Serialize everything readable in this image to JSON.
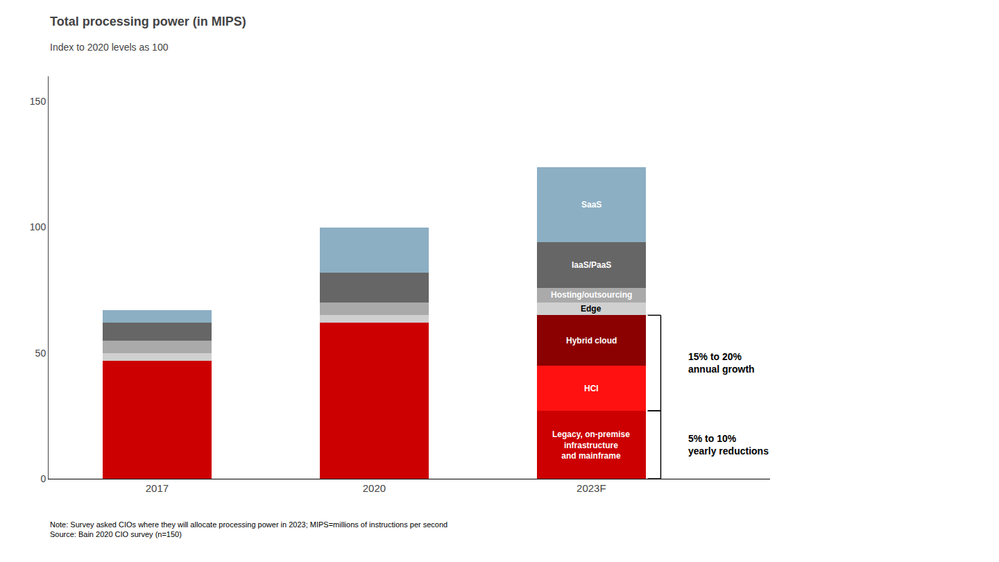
{
  "chart_data": {
    "type": "bar",
    "stacked": true,
    "title": "Total processing power (in MIPS)",
    "subtitle": "Index to 2020 levels as 100",
    "categories": [
      "2017",
      "2020",
      "2023F"
    ],
    "series": [
      {
        "name": "Legacy, on-premise\ninfrastructure\nand mainframe",
        "color": "#cc0000",
        "values": [
          47,
          62,
          27
        ]
      },
      {
        "name": "HCI",
        "color": "#ff1111",
        "values": [
          0,
          0,
          18
        ]
      },
      {
        "name": "Hybrid cloud",
        "color": "#8b0000",
        "values": [
          0,
          0,
          20
        ]
      },
      {
        "name": "Edge",
        "color": "#d0d0d0",
        "values": [
          3,
          3,
          5
        ]
      },
      {
        "name": "Hosting/outsourcing",
        "color": "#aaaaaa",
        "values": [
          5,
          5,
          6
        ]
      },
      {
        "name": "IaaS/PaaS",
        "color": "#666666",
        "values": [
          7,
          12,
          18
        ]
      },
      {
        "name": "SaaS",
        "color": "#8cafc4",
        "values": [
          5,
          18,
          30
        ]
      }
    ],
    "ylim": [
      0,
      160
    ],
    "yticks": [
      0,
      50,
      100,
      150
    ],
    "grid": false,
    "annotations": [
      {
        "text": "Legacy, on-premise\ninfrastructure\nand mainframe",
        "category": "2023F"
      },
      {
        "text": "HCI",
        "category": "2023F"
      },
      {
        "text": "Hybrid cloud",
        "category": "2023F"
      },
      {
        "text": "Edge",
        "category": "2023F"
      },
      {
        "text": "Hosting/outsourcing",
        "category": "2023F"
      },
      {
        "text": "IaaS/PaaS",
        "category": "2023F"
      },
      {
        "text": "SaaS",
        "category": "2023F"
      },
      {
        "text": "15% to 20%\nannual growth",
        "category": "2023F",
        "spans": [
          "HCI",
          "Hybrid cloud"
        ]
      },
      {
        "text": "5% to 10%\nyearly reductions",
        "category": "2023F",
        "spans": [
          "Legacy, on-premise\ninfrastructure\nand mainframe"
        ]
      }
    ],
    "note": "Note: Survey asked CIOs where they will allocate processing power in 2023; MIPS=millions of instructions per second\nSource: Bain 2020 CIO survey (n=150)"
  }
}
